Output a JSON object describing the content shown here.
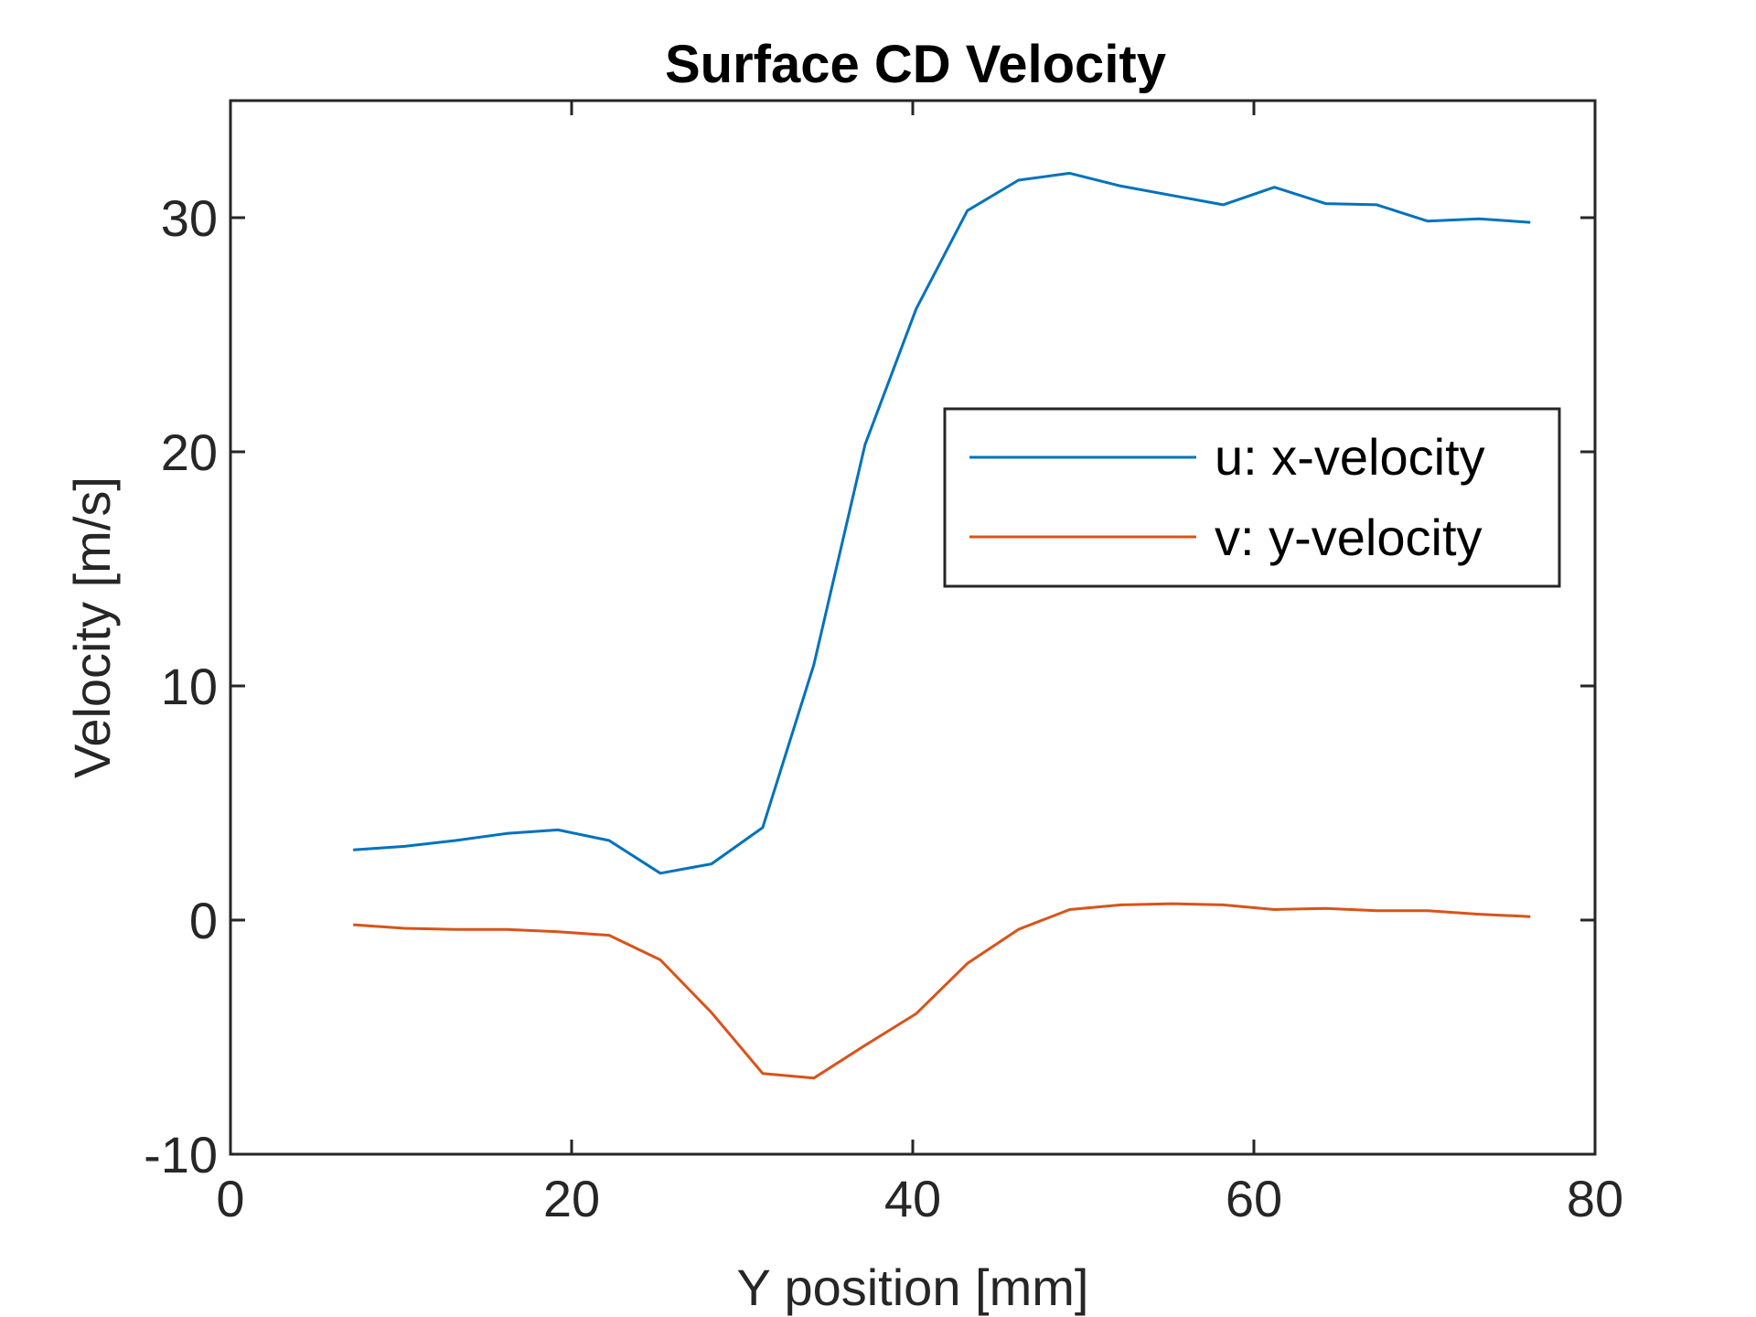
{
  "chart_data": {
    "type": "line",
    "title": "Surface CD Velocity",
    "xlabel": "Y position [mm]",
    "ylabel": "Velocity [m/s]",
    "xlim": [
      0,
      80
    ],
    "ylim": [
      -10,
      35
    ],
    "xticks": [
      0,
      20,
      40,
      60,
      80
    ],
    "yticks": [
      -10,
      0,
      10,
      20,
      30
    ],
    "xtick_labels": [
      "0",
      "20",
      "40",
      "60",
      "80"
    ],
    "ytick_labels": [
      "-10",
      "0",
      "10",
      "20",
      "30"
    ],
    "grid": false,
    "legend_position": "right-center",
    "x": [
      7.2,
      10.2,
      13.2,
      16.2,
      19.2,
      22.2,
      25.2,
      28.2,
      31.2,
      34.2,
      37.2,
      40.2,
      43.2,
      46.2,
      49.2,
      52.2,
      55.2,
      58.2,
      61.2,
      64.2,
      67.2,
      70.2,
      73.2,
      76.2
    ],
    "series": [
      {
        "name": "u: x-velocity",
        "color": "#0072BD",
        "values": [
          3.0,
          3.15,
          3.4,
          3.7,
          3.85,
          3.4,
          2.0,
          2.4,
          3.95,
          10.9,
          20.3,
          26.1,
          30.3,
          31.6,
          31.9,
          31.35,
          30.95,
          30.55,
          31.3,
          30.6,
          30.55,
          29.85,
          29.95,
          29.8
        ]
      },
      {
        "name": "v: y-velocity",
        "color": "#D95319",
        "values": [
          -0.2,
          -0.35,
          -0.4,
          -0.4,
          -0.5,
          -0.65,
          -1.7,
          -3.95,
          -6.55,
          -6.75,
          -5.35,
          -4.0,
          -1.85,
          -0.4,
          0.45,
          0.65,
          0.7,
          0.65,
          0.45,
          0.5,
          0.4,
          0.4,
          0.25,
          0.15
        ]
      }
    ]
  }
}
